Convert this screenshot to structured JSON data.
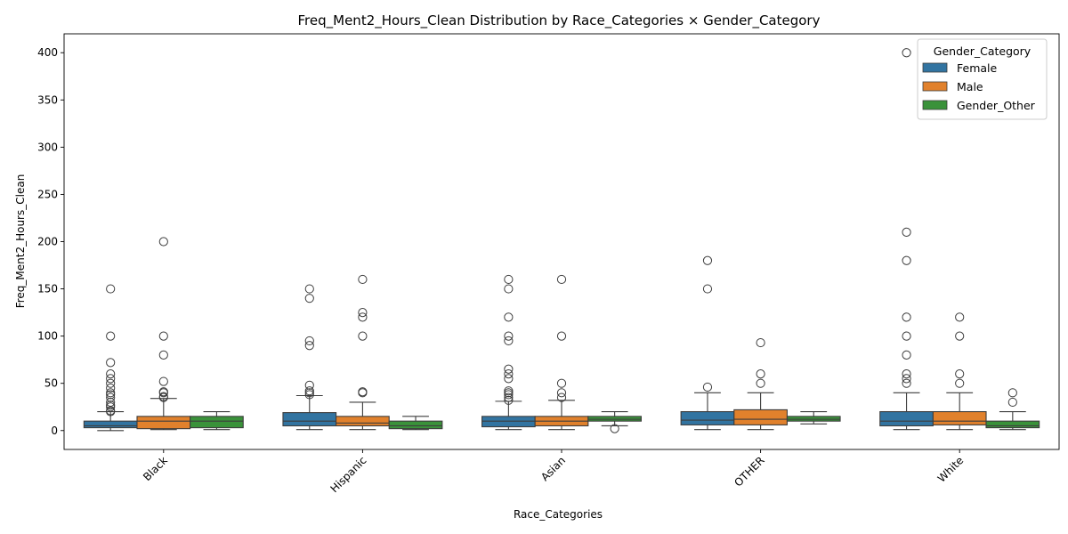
{
  "chart_data": {
    "type": "box",
    "title": "Freq_Ment2_Hours_Clean Distribution by Race_Categories × Gender_Category",
    "xlabel": "Race_Categories",
    "ylabel": "Freq_Ment2_Hours_Clean",
    "ylim": [
      -20,
      420
    ],
    "yticks": [
      0,
      50,
      100,
      150,
      200,
      250,
      300,
      350,
      400
    ],
    "grid": false,
    "legend_placement": "top-right",
    "legend_title": "Gender_Category",
    "categories": [
      "Black",
      "Hispanic",
      "Asian",
      "OTHER",
      "White"
    ],
    "series": [
      {
        "name": "Female",
        "color": "#3274a1",
        "boxes": [
          {
            "whisker_low": 0,
            "q1": 3,
            "median": 5,
            "q3": 10,
            "whisker_high": 20,
            "outliers": [
              150,
              100,
              72,
              60,
              55,
              50,
              45,
              40,
              38,
              35,
              30,
              27,
              25,
              21,
              20
            ]
          },
          {
            "whisker_low": 1,
            "q1": 5,
            "median": 10,
            "q3": 19,
            "whisker_high": 37,
            "outliers": [
              150,
              140,
              95,
              90,
              48,
              42,
              40,
              38
            ]
          },
          {
            "whisker_low": 1,
            "q1": 4,
            "median": 10,
            "q3": 15,
            "whisker_high": 31,
            "outliers": [
              160,
              150,
              120,
              100,
              95,
              65,
              60,
              55,
              42,
              40,
              38,
              35,
              32
            ]
          },
          {
            "whisker_low": 1,
            "q1": 6,
            "median": 11,
            "q3": 20,
            "whisker_high": 40,
            "outliers": [
              180,
              150,
              46
            ]
          },
          {
            "whisker_low": 1,
            "q1": 5,
            "median": 10,
            "q3": 20,
            "whisker_high": 40,
            "outliers": [
              400,
              210,
              180,
              120,
              100,
              80,
              60,
              55,
              50
            ]
          }
        ]
      },
      {
        "name": "Male",
        "color": "#e1812c",
        "boxes": [
          {
            "whisker_low": 1,
            "q1": 2,
            "median": 10,
            "q3": 15,
            "whisker_high": 34,
            "outliers": [
              200,
              100,
              80,
              52,
              41,
              40,
              36,
              35
            ]
          },
          {
            "whisker_low": 1,
            "q1": 5,
            "median": 8,
            "q3": 15,
            "whisker_high": 30,
            "outliers": [
              160,
              125,
              120,
              100,
              41,
              40
            ]
          },
          {
            "whisker_low": 1,
            "q1": 5,
            "median": 10,
            "q3": 15,
            "whisker_high": 32,
            "outliers": [
              160,
              100,
              50,
              40,
              35
            ]
          },
          {
            "whisker_low": 1,
            "q1": 6,
            "median": 12,
            "q3": 22,
            "whisker_high": 40,
            "outliers": [
              93,
              60,
              50
            ]
          },
          {
            "whisker_low": 1,
            "q1": 6,
            "median": 10,
            "q3": 20,
            "whisker_high": 40,
            "outliers": [
              120,
              100,
              60,
              50
            ]
          }
        ]
      },
      {
        "name": "Gender_Other",
        "color": "#3a923a",
        "boxes": [
          {
            "whisker_low": 1,
            "q1": 3,
            "median": 10,
            "q3": 15,
            "whisker_high": 20,
            "outliers": []
          },
          {
            "whisker_low": 1,
            "q1": 2,
            "median": 5,
            "q3": 10,
            "whisker_high": 15,
            "outliers": []
          },
          {
            "whisker_low": 5,
            "q1": 10,
            "median": 12,
            "q3": 15,
            "whisker_high": 20,
            "outliers": [
              2
            ]
          },
          {
            "whisker_low": 7,
            "q1": 10,
            "median": 12,
            "q3": 15,
            "whisker_high": 20,
            "outliers": []
          },
          {
            "whisker_low": 1,
            "q1": 3,
            "median": 5,
            "q3": 10,
            "whisker_high": 20,
            "outliers": [
              40,
              30
            ]
          }
        ]
      }
    ]
  }
}
